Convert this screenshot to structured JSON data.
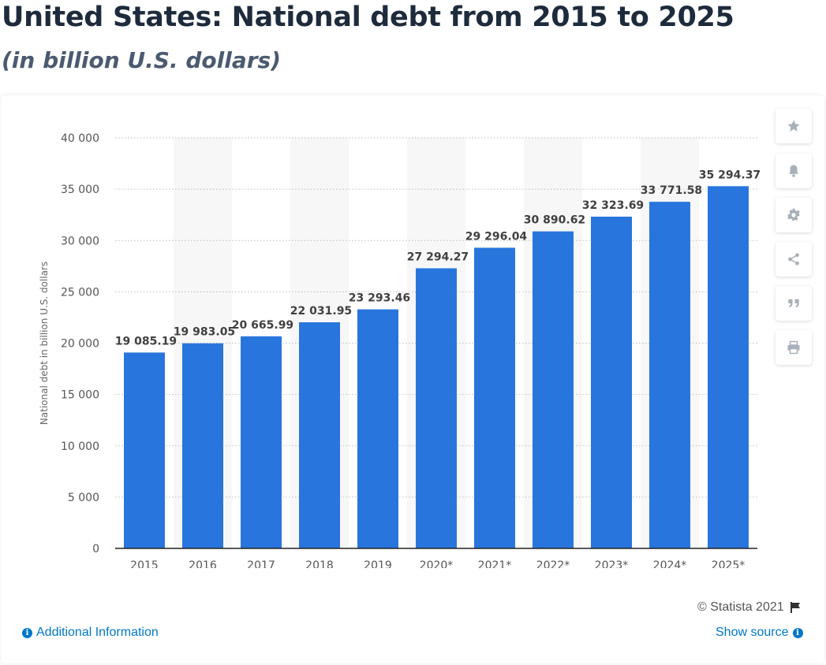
{
  "header": {
    "title": "United States: National debt from 2015 to 2025",
    "subtitle": "(in billion U.S. dollars)"
  },
  "chart_data": {
    "type": "bar",
    "title": "United States: National debt from 2015 to 2025",
    "subtitle": "(in billion U.S. dollars)",
    "xlabel": "",
    "ylabel": "National debt in billion U.S. dollars",
    "categories": [
      "2015",
      "2016",
      "2017",
      "2018",
      "2019",
      "2020*",
      "2021*",
      "2022*",
      "2023*",
      "2024*",
      "2025*"
    ],
    "values": [
      19085.19,
      19983.05,
      20665.99,
      22031.95,
      23293.46,
      27294.27,
      29296.04,
      30890.62,
      32323.69,
      33771.58,
      35294.37
    ],
    "value_labels": [
      "19 085.19",
      "19 983.05",
      "20 665.99",
      "22 031.95",
      "23 293.46",
      "27 294.27",
      "29 296.04",
      "30 890.62",
      "32 323.69",
      "33 771.58",
      "35 294.37"
    ],
    "yticks": [
      0,
      5000,
      10000,
      15000,
      20000,
      25000,
      30000,
      35000,
      40000
    ],
    "ytick_labels": [
      "0",
      "5 000",
      "10 000",
      "15 000",
      "20 000",
      "25 000",
      "30 000",
      "35 000",
      "40 000"
    ],
    "ylim": [
      0,
      40000
    ],
    "grid": true,
    "bar_color": "#2876dd"
  },
  "toolbar": [
    {
      "name": "favorite",
      "icon": "star-icon"
    },
    {
      "name": "notification",
      "icon": "bell-icon"
    },
    {
      "name": "settings",
      "icon": "gear-icon"
    },
    {
      "name": "share",
      "icon": "share-icon"
    },
    {
      "name": "cite",
      "icon": "quote-icon"
    },
    {
      "name": "print",
      "icon": "print-icon"
    }
  ],
  "footer": {
    "credit": "© Statista 2021",
    "additional_info": "Additional Information",
    "show_source": "Show source"
  },
  "colors": {
    "title": "#1e2b3c",
    "subtitle": "#4a5a70",
    "link": "#0077c8",
    "icon": "#a8b0b9"
  }
}
